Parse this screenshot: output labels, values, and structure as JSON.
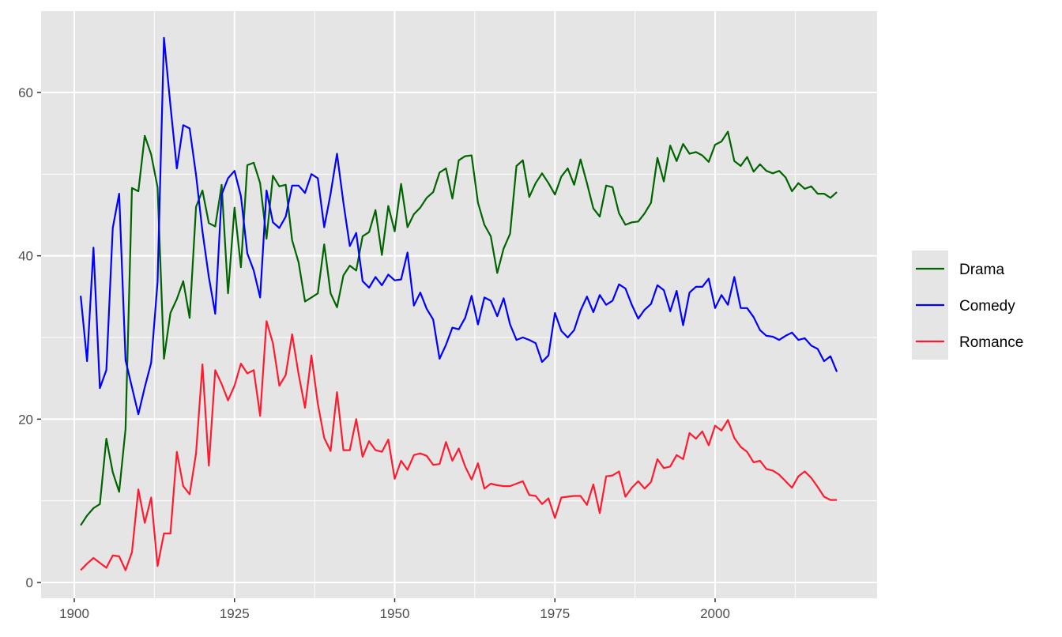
{
  "chart_data": {
    "type": "line",
    "title": "",
    "xlabel": "",
    "ylabel": "",
    "xlim": [
      1895,
      2025
    ],
    "ylim": [
      -2,
      70
    ],
    "x_ticks": [
      1900,
      1925,
      1950,
      1975,
      2000
    ],
    "y_ticks": [
      0,
      20,
      40,
      60
    ],
    "grid": true,
    "legend_position": "right",
    "x_start": 1901,
    "series": [
      {
        "name": "Drama",
        "color": "#006400",
        "values": [
          7.0,
          8.2,
          9.1,
          9.6,
          17.6,
          13.5,
          11.1,
          18.8,
          48.3,
          47.9,
          54.7,
          52.4,
          48.4,
          27.4,
          33.0,
          34.7,
          36.9,
          32.4,
          46.0,
          48.0,
          44.0,
          43.6,
          48.7,
          35.4,
          45.9,
          38.6,
          51.1,
          51.4,
          48.9,
          42.1,
          49.8,
          48.5,
          48.7,
          41.9,
          39.2,
          34.4,
          34.9,
          35.4,
          41.4,
          35.4,
          33.7,
          37.6,
          38.8,
          38.2,
          42.4,
          42.9,
          45.6,
          40.1,
          46.1,
          43.0,
          48.8,
          43.5,
          45.1,
          45.9,
          47.1,
          47.8,
          50.2,
          50.7,
          47.0,
          51.7,
          52.2,
          52.3,
          46.5,
          43.8,
          42.4,
          37.9,
          40.9,
          42.7,
          51.0,
          51.7,
          47.2,
          48.9,
          50.1,
          48.9,
          47.5,
          49.7,
          50.7,
          48.7,
          51.8,
          48.9,
          45.8,
          44.8,
          48.6,
          48.4,
          45.2,
          43.8,
          44.1,
          44.2,
          45.2,
          46.5,
          52.0,
          49.1,
          53.5,
          51.6,
          53.7,
          52.5,
          52.7,
          52.3,
          51.5,
          53.6,
          54.0,
          55.2,
          51.6,
          51.0,
          52.1,
          50.3,
          51.2,
          50.4,
          50.1,
          50.4,
          49.6,
          47.9,
          48.9,
          48.2,
          48.5,
          47.6,
          47.6,
          47.1,
          47.8
        ]
      },
      {
        "name": "Comedy",
        "color": "#0000FF",
        "values": [
          35.1,
          27.1,
          41.0,
          23.8,
          26.0,
          43.4,
          47.6,
          27.2,
          23.9,
          20.6,
          23.9,
          26.9,
          36.8,
          66.7,
          58.4,
          50.7,
          56.0,
          55.6,
          49.9,
          43.0,
          37.4,
          32.9,
          47.5,
          49.5,
          50.4,
          47.3,
          40.3,
          38.2,
          34.9,
          48.0,
          44.1,
          43.4,
          44.8,
          48.6,
          48.6,
          47.7,
          50.0,
          49.5,
          43.5,
          47.6,
          52.5,
          46.5,
          41.2,
          42.8,
          36.9,
          36.1,
          37.4,
          36.4,
          37.7,
          37.0,
          37.1,
          40.4,
          33.9,
          35.5,
          33.5,
          32.2,
          27.4,
          29.1,
          31.2,
          31.0,
          32.4,
          35.1,
          31.6,
          34.9,
          34.5,
          32.6,
          34.8,
          31.6,
          29.7,
          30.0,
          29.7,
          29.3,
          27.0,
          27.8,
          33.0,
          30.8,
          30.0,
          30.9,
          33.3,
          35.0,
          33.1,
          35.2,
          34.0,
          34.5,
          36.5,
          36.0,
          34.0,
          32.3,
          33.4,
          34.1,
          36.4,
          35.8,
          33.2,
          35.7,
          31.5,
          35.5,
          36.2,
          36.2,
          37.2,
          33.6,
          35.2,
          34.0,
          37.4,
          33.6,
          33.6,
          32.5,
          30.9,
          30.2,
          30.1,
          29.7,
          30.2,
          30.6,
          29.7,
          29.9,
          29.0,
          28.6,
          27.1,
          27.7,
          25.8
        ]
      },
      {
        "name": "Romance",
        "color": "#FF1A2E",
        "values": [
          1.5,
          2.3,
          3.0,
          2.4,
          1.8,
          3.3,
          3.2,
          1.5,
          3.7,
          11.4,
          7.3,
          10.4,
          2.0,
          6.0,
          6.0,
          16.0,
          11.8,
          10.8,
          15.8,
          26.7,
          14.3,
          26.0,
          24.3,
          22.3,
          24.1,
          26.8,
          25.6,
          26.0,
          20.4,
          32.0,
          29.3,
          24.1,
          25.4,
          30.4,
          25.5,
          21.4,
          27.8,
          21.9,
          17.7,
          16.1,
          23.3,
          16.2,
          16.2,
          20.0,
          15.4,
          17.3,
          16.2,
          16.0,
          17.5,
          12.7,
          14.9,
          13.8,
          15.6,
          15.8,
          15.5,
          14.4,
          14.5,
          17.2,
          14.9,
          16.4,
          14.2,
          12.6,
          14.6,
          11.5,
          12.1,
          11.9,
          11.8,
          11.8,
          12.1,
          12.4,
          10.7,
          10.6,
          9.6,
          10.3,
          7.9,
          10.4,
          10.5,
          10.6,
          10.6,
          9.5,
          12.0,
          8.5,
          13.0,
          13.1,
          13.6,
          10.5,
          11.6,
          12.4,
          11.5,
          12.3,
          15.1,
          14.0,
          14.2,
          15.6,
          15.1,
          18.3,
          17.6,
          18.5,
          16.8,
          19.2,
          18.6,
          19.9,
          17.7,
          16.6,
          16.0,
          14.7,
          14.9,
          13.9,
          13.7,
          13.2,
          12.4,
          11.6,
          13.0,
          13.6,
          12.8,
          11.7,
          10.5,
          10.1,
          10.1
        ]
      }
    ]
  },
  "legend": {
    "items": [
      {
        "label": "Drama",
        "color": "#006400"
      },
      {
        "label": "Comedy",
        "color": "#0000FF"
      },
      {
        "label": "Romance",
        "color": "#FF1A2E"
      }
    ]
  },
  "axes": {
    "x_tick_labels": [
      "1900",
      "1925",
      "1950",
      "1975",
      "2000"
    ],
    "y_tick_labels": [
      "0",
      "20",
      "40",
      "60"
    ]
  }
}
